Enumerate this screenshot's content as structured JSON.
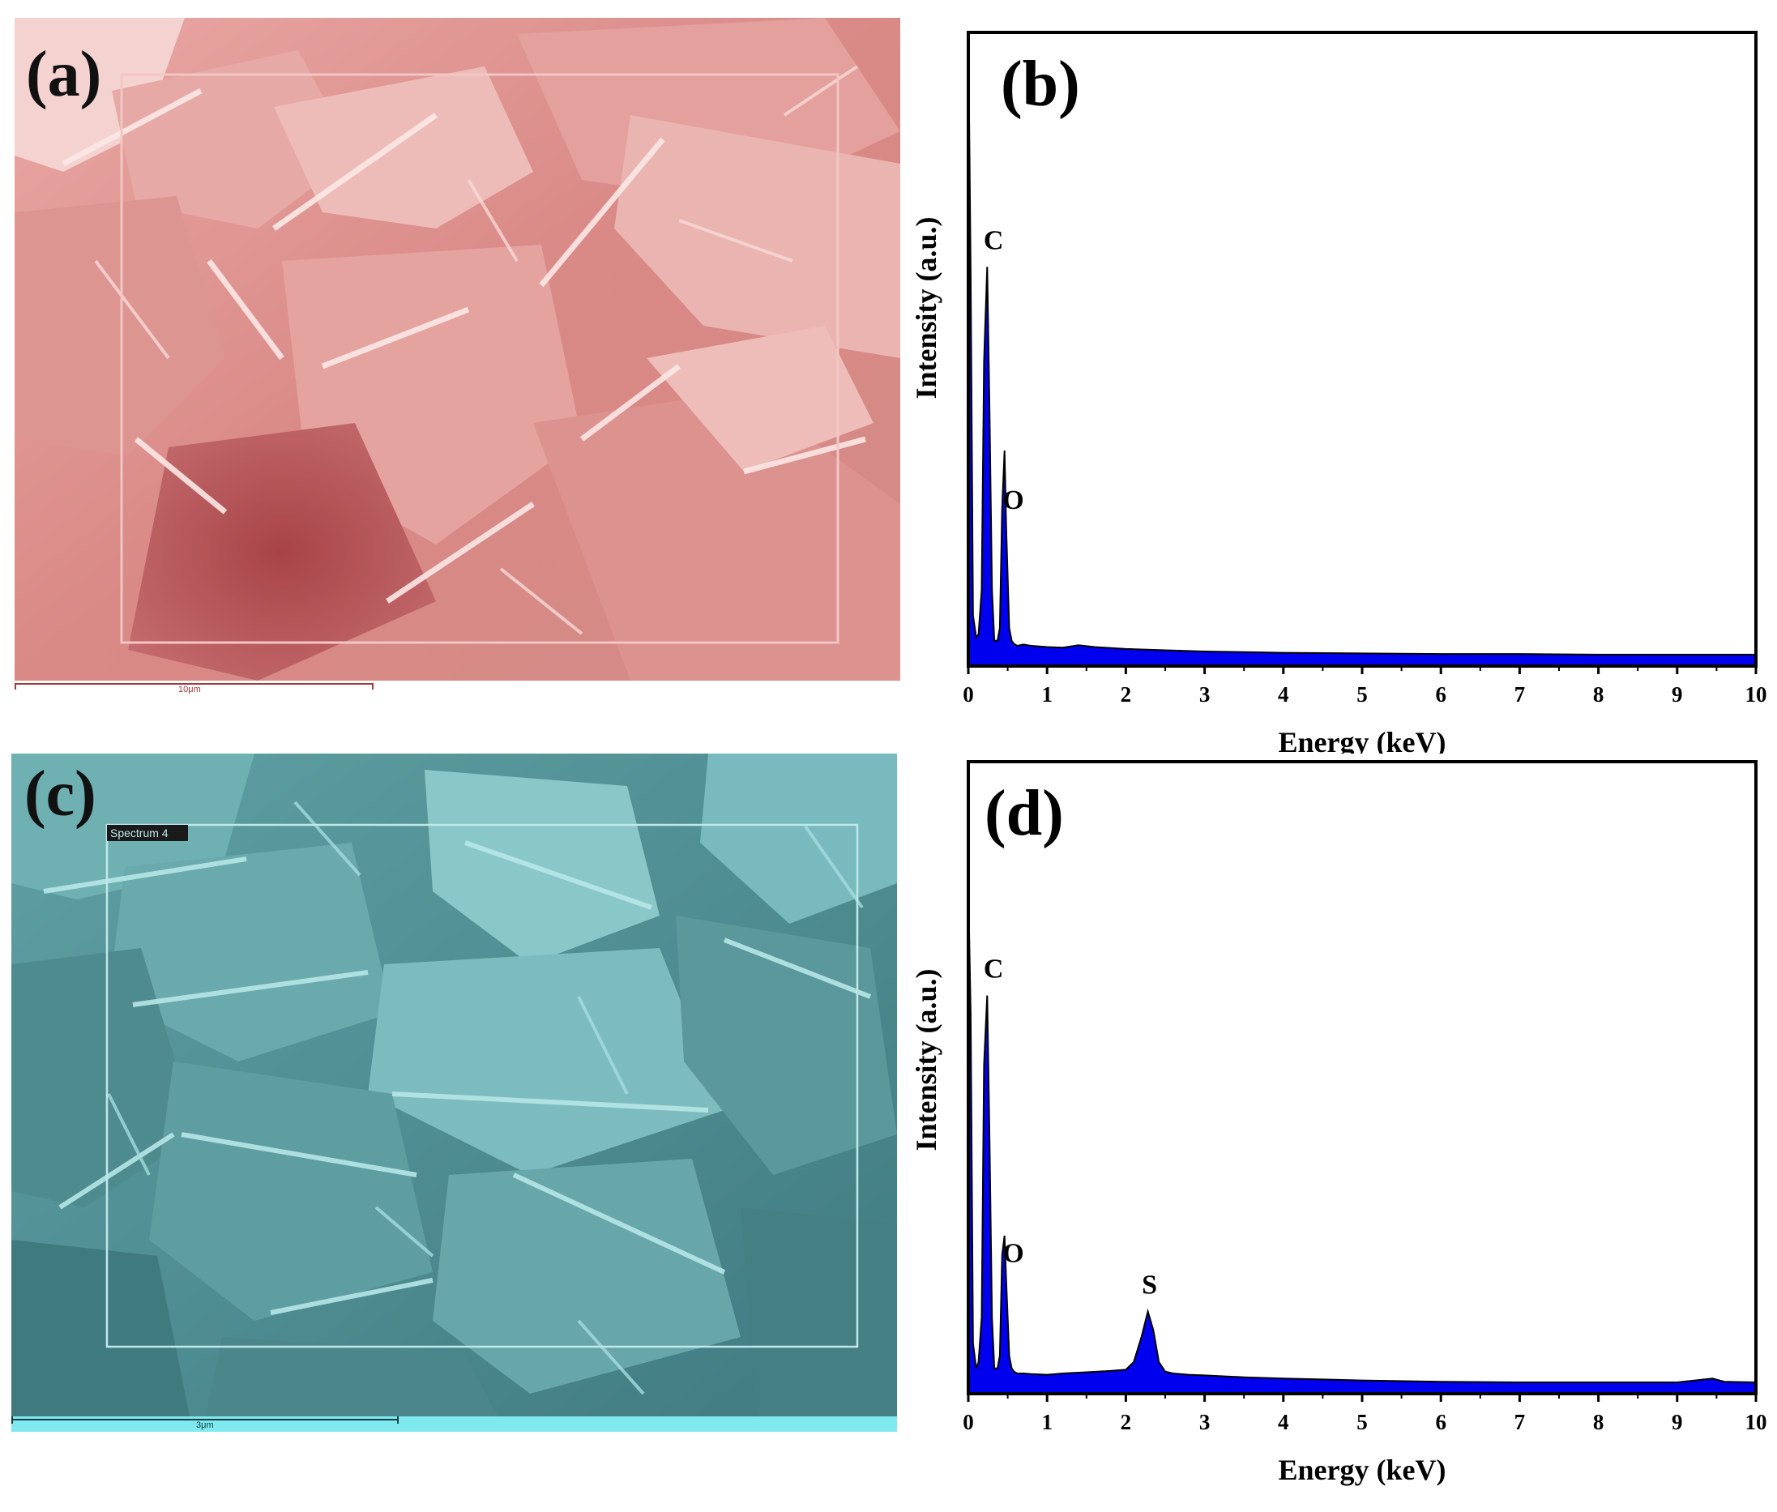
{
  "panels": {
    "a": {
      "label": "(a)",
      "scale_bar_text": "10μm"
    },
    "c": {
      "label": "(c)",
      "scale_bar_text": "3μm",
      "region_label": "Spectrum 4"
    }
  },
  "chart_data": [
    {
      "type": "area",
      "panel_label": "(b)",
      "xlabel": "Energy (keV)",
      "ylabel": "Intensity (a.u.)",
      "xlim": [
        0,
        10
      ],
      "ylim": [
        0,
        100
      ],
      "xticks": [
        "0",
        "1",
        "2",
        "3",
        "4",
        "5",
        "6",
        "7",
        "8",
        "9",
        "10"
      ],
      "color": "#0000ee",
      "series": [
        {
          "x": [
            0.0,
            0.03,
            0.06,
            0.1,
            0.13,
            0.17,
            0.2,
            0.24,
            0.27,
            0.3,
            0.33,
            0.37,
            0.4,
            0.43,
            0.46,
            0.48,
            0.52,
            0.55,
            0.58,
            0.62,
            0.7,
            0.8,
            1.0,
            1.2,
            1.4,
            1.6,
            2.0,
            2.5,
            3.0,
            3.5,
            4.0,
            5.0,
            6.0,
            7.0,
            8.0,
            9.0,
            10.0
          ],
          "y": [
            100,
            62,
            8,
            4.5,
            5,
            12,
            48,
            63,
            40,
            12,
            4,
            4,
            6,
            25,
            34,
            22,
            6,
            4,
            3.5,
            3.2,
            3.4,
            3.2,
            3.0,
            2.9,
            3.3,
            3.0,
            2.7,
            2.5,
            2.3,
            2.2,
            2.1,
            2.0,
            1.9,
            1.9,
            1.8,
            1.8,
            1.8
          ]
        }
      ],
      "annotations": [
        {
          "text": "C",
          "x": 0.3
        },
        {
          "text": "O",
          "x": 0.55
        }
      ]
    },
    {
      "type": "area",
      "panel_label": "(d)",
      "xlabel": "Energy (keV)",
      "ylabel": "Intensity (a.u.)",
      "xlim": [
        0,
        10
      ],
      "ylim": [
        0,
        100
      ],
      "xticks": [
        "0",
        "1",
        "2",
        "3",
        "4",
        "5",
        "6",
        "7",
        "8",
        "9",
        "10"
      ],
      "color": "#0000ee",
      "series": [
        {
          "x": [
            0.0,
            0.03,
            0.06,
            0.1,
            0.13,
            0.17,
            0.2,
            0.24,
            0.27,
            0.3,
            0.33,
            0.37,
            0.4,
            0.43,
            0.46,
            0.48,
            0.52,
            0.55,
            0.58,
            0.62,
            0.7,
            0.8,
            1.0,
            1.2,
            1.5,
            1.8,
            2.0,
            2.1,
            2.2,
            2.28,
            2.35,
            2.42,
            2.5,
            2.6,
            2.8,
            3.0,
            3.5,
            4.0,
            5.0,
            6.0,
            7.0,
            8.0,
            9.0,
            9.45,
            9.6,
            10.0
          ],
          "y": [
            80,
            60,
            8,
            4,
            5,
            12,
            52,
            63,
            40,
            12,
            4,
            4,
            6,
            22,
            25,
            18,
            6,
            4,
            3.5,
            3.2,
            3.2,
            3.1,
            3.0,
            3.2,
            3.4,
            3.6,
            3.8,
            5,
            9,
            13,
            10,
            5,
            3.5,
            3.2,
            3.0,
            2.9,
            2.6,
            2.4,
            2.1,
            1.9,
            1.8,
            1.8,
            1.8,
            2.4,
            1.9,
            1.8
          ]
        }
      ],
      "annotations": [
        {
          "text": "C",
          "x": 0.3
        },
        {
          "text": "O",
          "x": 0.55
        },
        {
          "text": "S",
          "x": 2.28
        }
      ]
    }
  ]
}
